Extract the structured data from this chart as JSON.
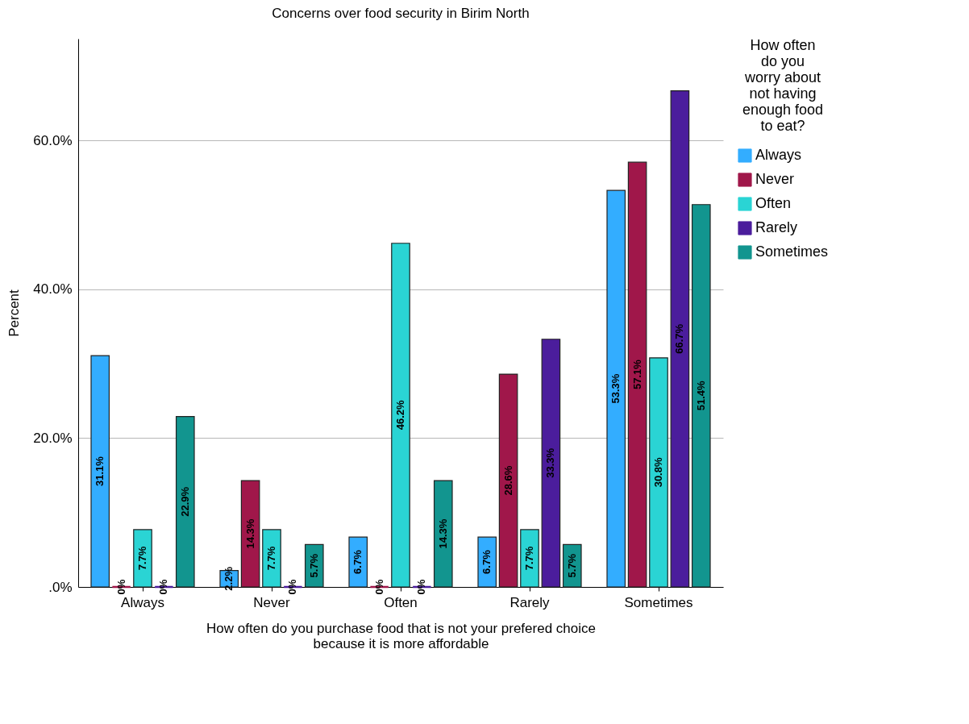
{
  "chart_data": {
    "type": "bar",
    "title": "Concerns over food security in Birim North",
    "xlabel": "How often do you purchase food that is not your prefered choice because it is more affordable",
    "ylabel": "Percent",
    "legend_title": "How often do you worry about not having enough food to eat?",
    "legend": "right",
    "grid": "y",
    "categories": [
      "Always",
      "Never",
      "Often",
      "Rarely",
      "Sometimes"
    ],
    "ylim": [
      0,
      73.7
    ],
    "yticks": [
      {
        "value": 0,
        "label": ".0%"
      },
      {
        "value": 20,
        "label": "20.0%"
      },
      {
        "value": 40,
        "label": "40.0%"
      },
      {
        "value": 60,
        "label": "60.0%"
      }
    ],
    "series": [
      {
        "name": "Always",
        "color": "#33adff",
        "values": [
          31.1,
          2.2,
          6.7,
          6.7,
          53.3
        ],
        "value_labels": [
          "31.1%",
          "2.2%",
          "6.7%",
          "6.7%",
          "53.3%"
        ]
      },
      {
        "name": "Never",
        "color": "#a0174a",
        "values": [
          0,
          14.3,
          0,
          28.6,
          57.1
        ],
        "value_labels": [
          "0%",
          "14.3%",
          "0%",
          "28.6%",
          "57.1%"
        ]
      },
      {
        "name": "Often",
        "color": "#2ad4d4",
        "values": [
          7.7,
          7.7,
          46.2,
          7.7,
          30.8
        ],
        "value_labels": [
          "7.7%",
          "7.7%",
          "46.2%",
          "7.7%",
          "30.8%"
        ]
      },
      {
        "name": "Rarely",
        "color": "#4b1d9c",
        "values": [
          0,
          0,
          0,
          33.3,
          66.7
        ],
        "value_labels": [
          "0%",
          "0%",
          "0%",
          "33.3%",
          "66.7%"
        ]
      },
      {
        "name": "Sometimes",
        "color": "#12958f",
        "values": [
          22.9,
          5.7,
          14.3,
          5.7,
          51.4
        ],
        "value_labels": [
          "22.9%",
          "5.7%",
          "14.3%",
          "5.7%",
          "51.4%"
        ]
      }
    ]
  }
}
